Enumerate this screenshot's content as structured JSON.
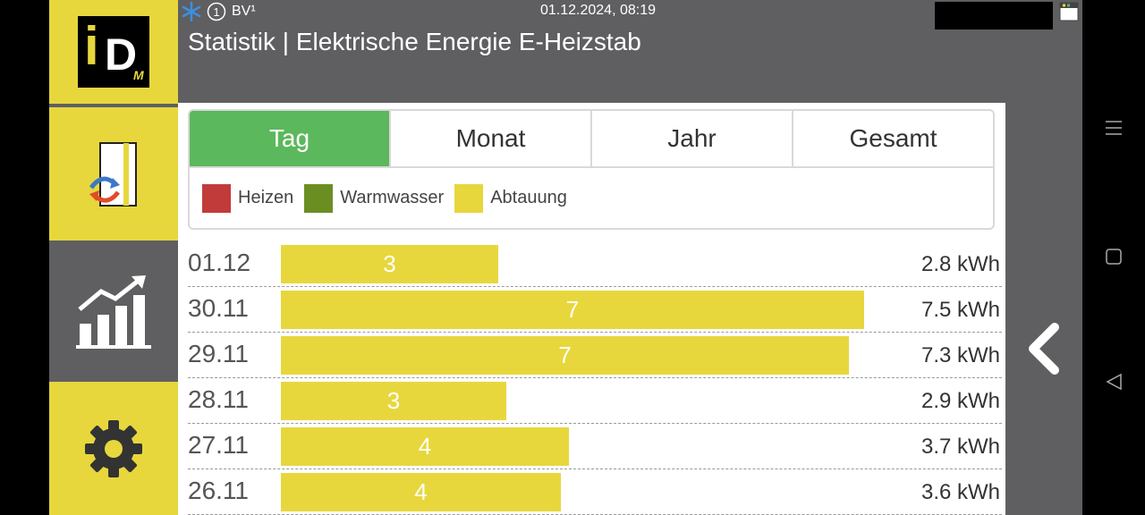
{
  "status": {
    "snowflake_icon": "snowflake-icon",
    "circle_number": "1",
    "bv_label": "BV¹",
    "datetime": "01.12.2024, 08:19"
  },
  "page": {
    "title": "Statistik | Elektrische Energie E-Heizstab"
  },
  "tabs": [
    {
      "label": "Tag",
      "active": true
    },
    {
      "label": "Monat",
      "active": false
    },
    {
      "label": "Jahr",
      "active": false
    },
    {
      "label": "Gesamt",
      "active": false
    }
  ],
  "legend": [
    {
      "label": "Heizen",
      "color": "#c23b3b"
    },
    {
      "label": "Warmwasser",
      "color": "#6b8e23"
    },
    {
      "label": "Abtauung",
      "color": "#e7d73d"
    }
  ],
  "chart_data": {
    "type": "bar",
    "categories": [
      "01.12",
      "30.11",
      "29.11",
      "28.11",
      "27.11",
      "26.11"
    ],
    "series": [
      {
        "name": "Abtauung",
        "values": [
          2.8,
          7.5,
          7.3,
          2.9,
          3.7,
          3.6
        ]
      }
    ],
    "bar_labels": [
      "3",
      "7",
      "7",
      "3",
      "4",
      "4"
    ],
    "value_labels": [
      "2.8 kWh",
      "7.5 kWh",
      "7.3 kWh",
      "2.9 kWh",
      "3.7 kWh",
      "3.6 kWh"
    ],
    "unit": "kWh",
    "xlim": [
      0,
      7.5
    ]
  },
  "sidebar": {
    "items": [
      {
        "name": "logo",
        "icon": "idm-logo"
      },
      {
        "name": "heat-pump",
        "icon": "heat-pump-icon"
      },
      {
        "name": "statistics",
        "icon": "statistics-chart-icon",
        "active": true
      },
      {
        "name": "settings",
        "icon": "gear-icon"
      }
    ]
  },
  "colors": {
    "accent_yellow": "#e7d73d",
    "active_tab_green": "#5cb85c",
    "background_gray": "#5f5f61"
  }
}
